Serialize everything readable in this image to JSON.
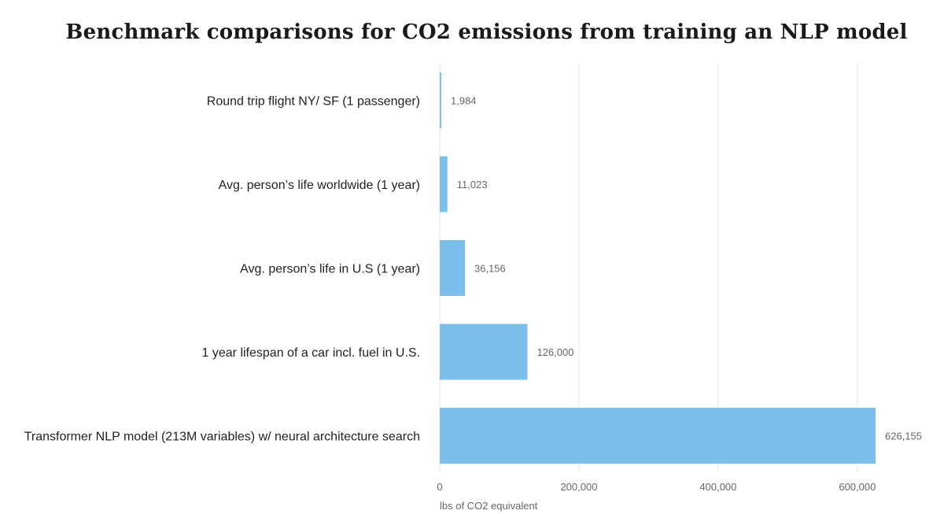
{
  "chart_data": {
    "type": "bar",
    "orientation": "horizontal",
    "title": "Benchmark comparisons for CO2 emissions from training an NLP model",
    "xlabel": "lbs of CO2 equivalent",
    "ylabel": "",
    "categories": [
      "Round trip flight NY/ SF (1 passenger)",
      "Avg. person’s life worldwide (1 year)",
      "Avg. person’s life in U.S (1 year)",
      "1 year lifespan of a car incl. fuel in U.S.",
      "Transformer NLP model (213M variables) w/ neural architecture search"
    ],
    "values": [
      1984,
      11023,
      36156,
      126000,
      626155
    ],
    "value_labels": [
      "1,984",
      "11,023",
      "36,156",
      "126,000",
      "626,155"
    ],
    "xticks": [
      0,
      200000,
      400000,
      600000
    ],
    "xtick_labels": [
      "0",
      "200,000",
      "400,000",
      "600,000"
    ],
    "xlim": [
      0,
      626155
    ],
    "grid": "vertical",
    "bar_color": "#7bbfeb",
    "grid_color": "#e6e6e6"
  }
}
